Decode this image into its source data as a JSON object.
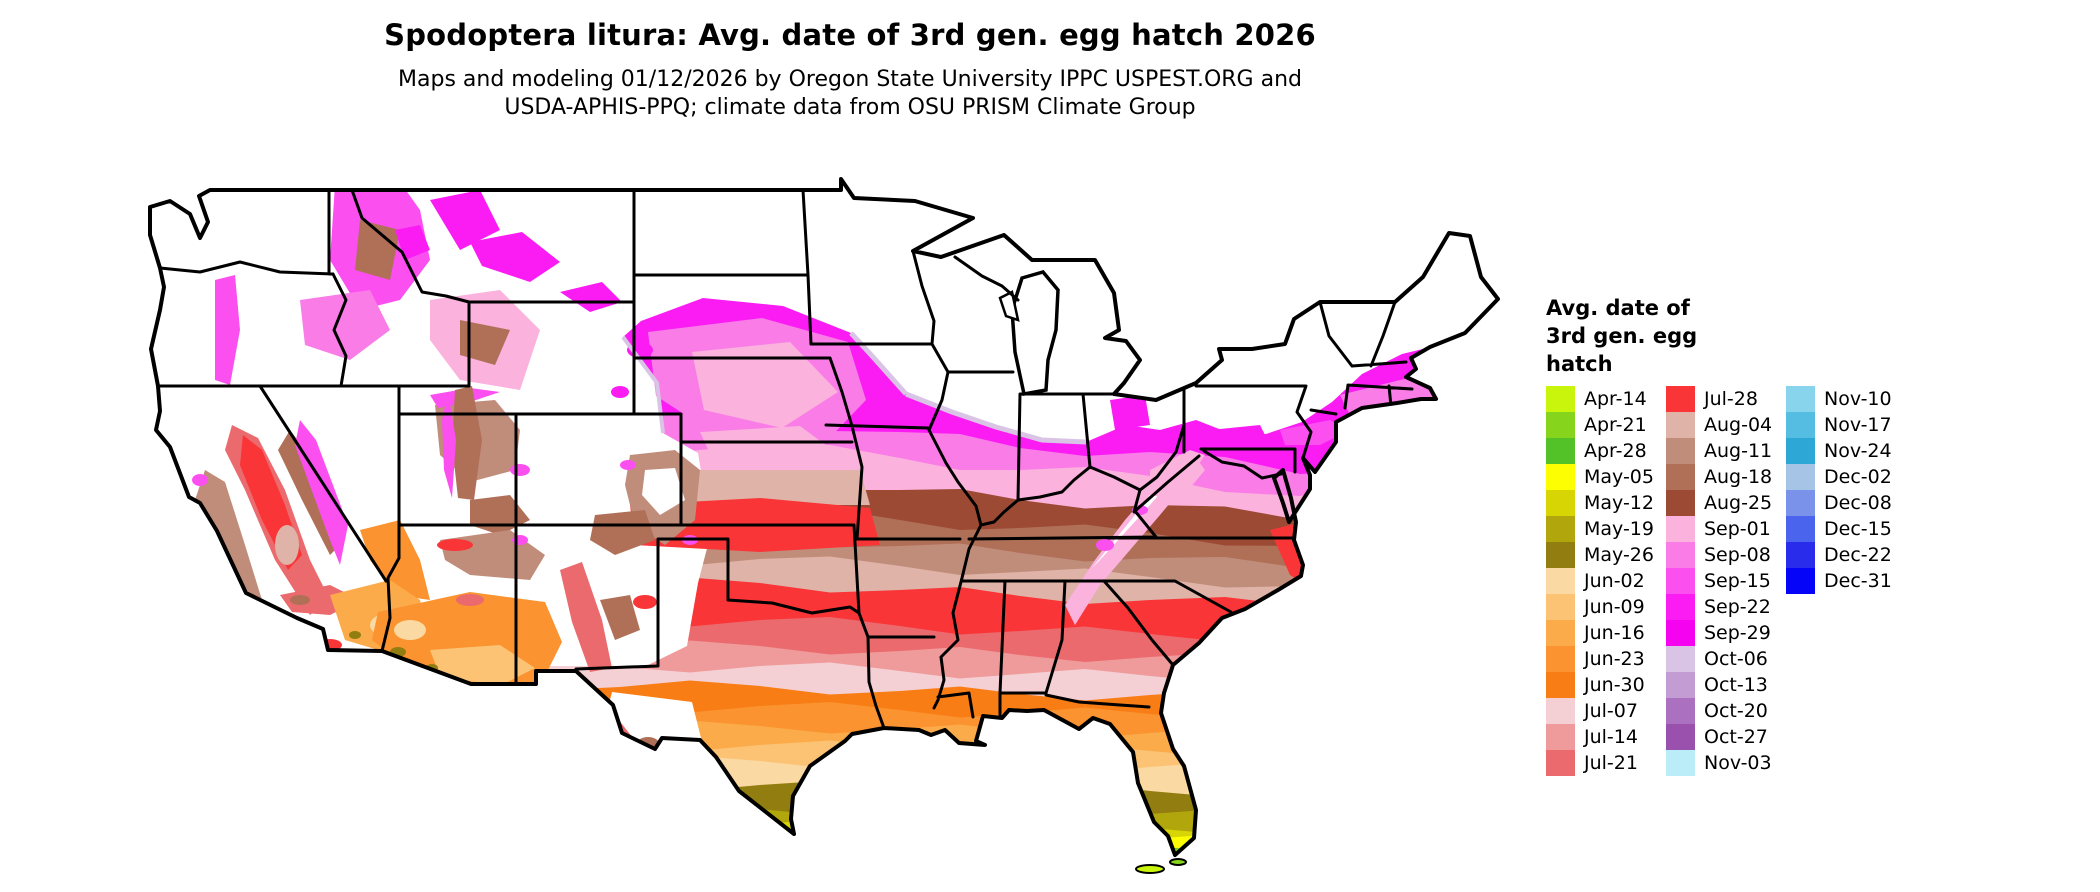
{
  "header": {
    "title": "Spodoptera litura: Avg. date of 3rd gen. egg hatch 2026",
    "subtitle_line1": "Maps and modeling 01/12/2026 by Oregon State University IPPC USPEST.ORG and",
    "subtitle_line2": "USDA-APHIS-PPQ; climate data from OSU PRISM Climate Group"
  },
  "legend": {
    "title_line1": "Avg. date of",
    "title_line2": "3rd gen. egg",
    "title_line3": "hatch",
    "columns": [
      [
        {
          "label": "Apr-14",
          "color": "#c9f40c"
        },
        {
          "label": "Apr-21",
          "color": "#86d41c"
        },
        {
          "label": "Apr-28",
          "color": "#52c228"
        },
        {
          "label": "May-05",
          "color": "#fdfe02"
        },
        {
          "label": "May-12",
          "color": "#d8d504"
        },
        {
          "label": "May-19",
          "color": "#b1a70d"
        },
        {
          "label": "May-26",
          "color": "#927d10"
        },
        {
          "label": "Jun-02",
          "color": "#fbd9a2"
        },
        {
          "label": "Jun-09",
          "color": "#fcc374"
        },
        {
          "label": "Jun-16",
          "color": "#fbab49"
        },
        {
          "label": "Jun-23",
          "color": "#fa9330"
        },
        {
          "label": "Jun-30",
          "color": "#f87d15"
        },
        {
          "label": "Jul-07",
          "color": "#f4d0d4"
        },
        {
          "label": "Jul-14",
          "color": "#ef9b9b"
        },
        {
          "label": "Jul-21",
          "color": "#eb6a6e"
        }
      ],
      [
        {
          "label": "Jul-28",
          "color": "#f93537"
        },
        {
          "label": "Aug-04",
          "color": "#dfb3a8"
        },
        {
          "label": "Aug-11",
          "color": "#c18d7b"
        },
        {
          "label": "Aug-18",
          "color": "#b07058"
        },
        {
          "label": "Aug-25",
          "color": "#9c4a34"
        },
        {
          "label": "Sep-01",
          "color": "#fbb2dd"
        },
        {
          "label": "Sep-08",
          "color": "#f97ce7"
        },
        {
          "label": "Sep-15",
          "color": "#fb4ff0"
        },
        {
          "label": "Sep-22",
          "color": "#fb1cf3"
        },
        {
          "label": "Sep-29",
          "color": "#f503f1"
        },
        {
          "label": "Oct-06",
          "color": "#dac4e6"
        },
        {
          "label": "Oct-13",
          "color": "#c49cd4"
        },
        {
          "label": "Oct-20",
          "color": "#ac70c0"
        },
        {
          "label": "Oct-27",
          "color": "#9a51ae"
        },
        {
          "label": "Nov-03",
          "color": "#baedf8"
        }
      ],
      [
        {
          "label": "Nov-10",
          "color": "#88d4ec"
        },
        {
          "label": "Nov-17",
          "color": "#56bde2"
        },
        {
          "label": "Nov-24",
          "color": "#2da7d6"
        },
        {
          "label": "Dec-02",
          "color": "#a6c5e6"
        },
        {
          "label": "Dec-08",
          "color": "#7b92ea"
        },
        {
          "label": "Dec-15",
          "color": "#4b64ee"
        },
        {
          "label": "Dec-22",
          "color": "#2a2ceb"
        },
        {
          "label": "Dec-31",
          "color": "#0503f8"
        }
      ]
    ]
  }
}
